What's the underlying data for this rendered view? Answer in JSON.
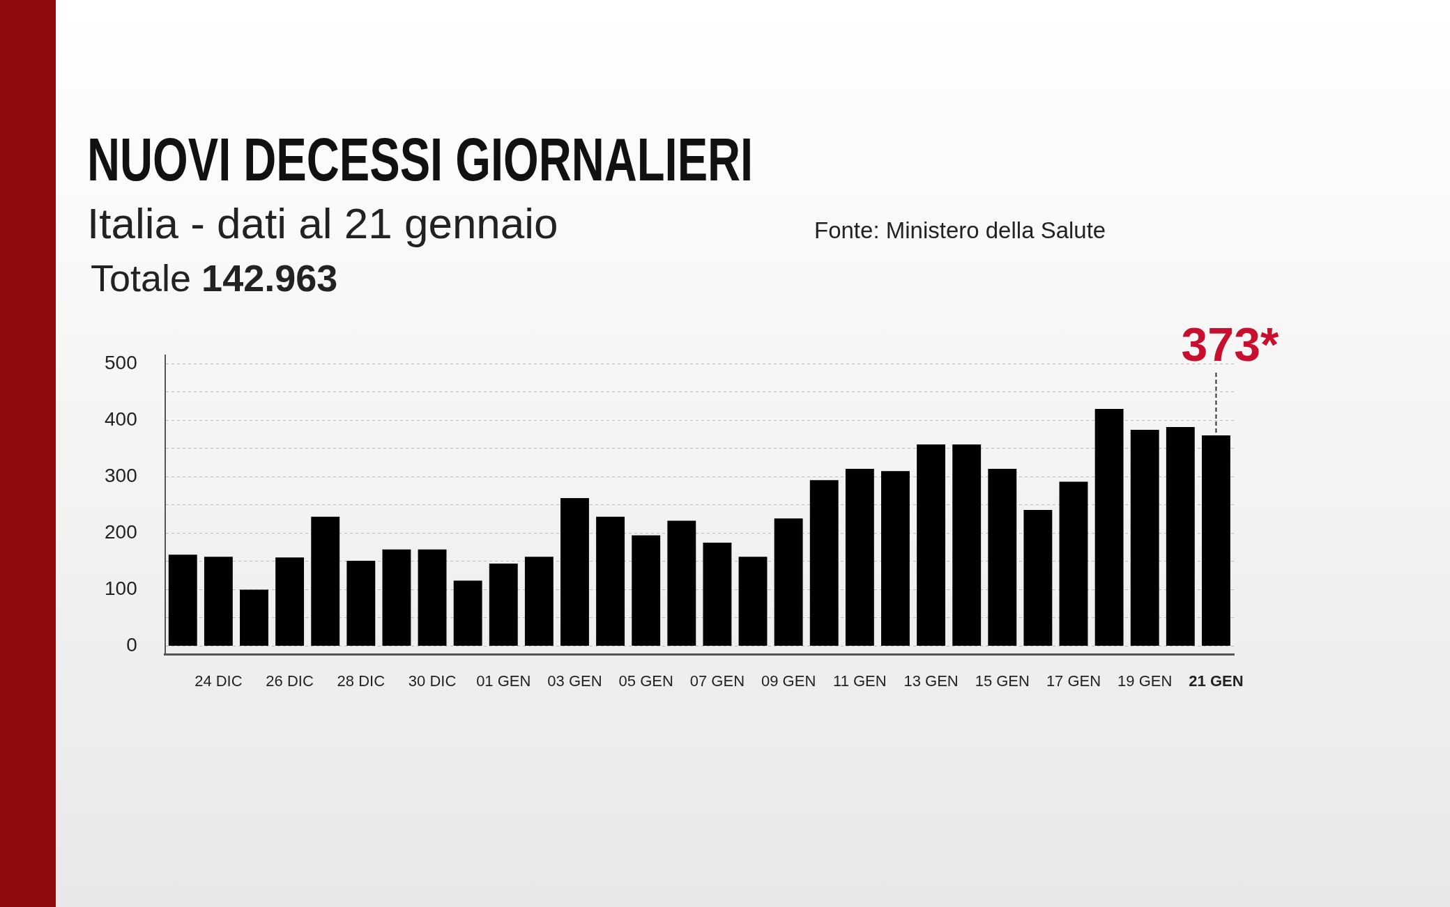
{
  "chart_data": {
    "type": "bar",
    "title": "NUOVI DECESSI GIORNALIERI",
    "subtitle": "Italia - dati al 21 gennaio",
    "annotations": [
      "Totale 142.963",
      "Fonte: Ministero della Salute",
      {
        "text": "373*",
        "x": "21 GEN",
        "y": 373
      }
    ],
    "categories": [
      null,
      "24 DIC",
      null,
      "26 DIC",
      null,
      "28 DIC",
      null,
      "30 DIC",
      null,
      "01 GEN",
      null,
      "03 GEN",
      null,
      "05 GEN",
      null,
      "07 GEN",
      null,
      "09 GEN",
      null,
      "11 GEN",
      null,
      "13 GEN",
      null,
      "15 GEN",
      null,
      "17 GEN",
      null,
      "19 GEN",
      null,
      "21 GEN"
    ],
    "values": [
      162,
      158,
      100,
      157,
      229,
      151,
      171,
      171,
      116,
      146,
      158,
      262,
      229,
      196,
      222,
      183,
      158,
      226,
      294,
      314,
      310,
      357,
      357,
      314,
      241,
      291,
      420,
      383,
      388,
      373
    ],
    "color": "#000000",
    "ylim": [
      -15,
      515
    ],
    "yticks": [
      0,
      {
        "value": 50,
        "label": null
      },
      100,
      {
        "value": 150,
        "label": null
      },
      200,
      {
        "value": 250,
        "label": null
      },
      300,
      {
        "value": 350,
        "label": null
      },
      400,
      {
        "value": 450,
        "label": null
      },
      500
    ],
    "grid": "y"
  }
}
